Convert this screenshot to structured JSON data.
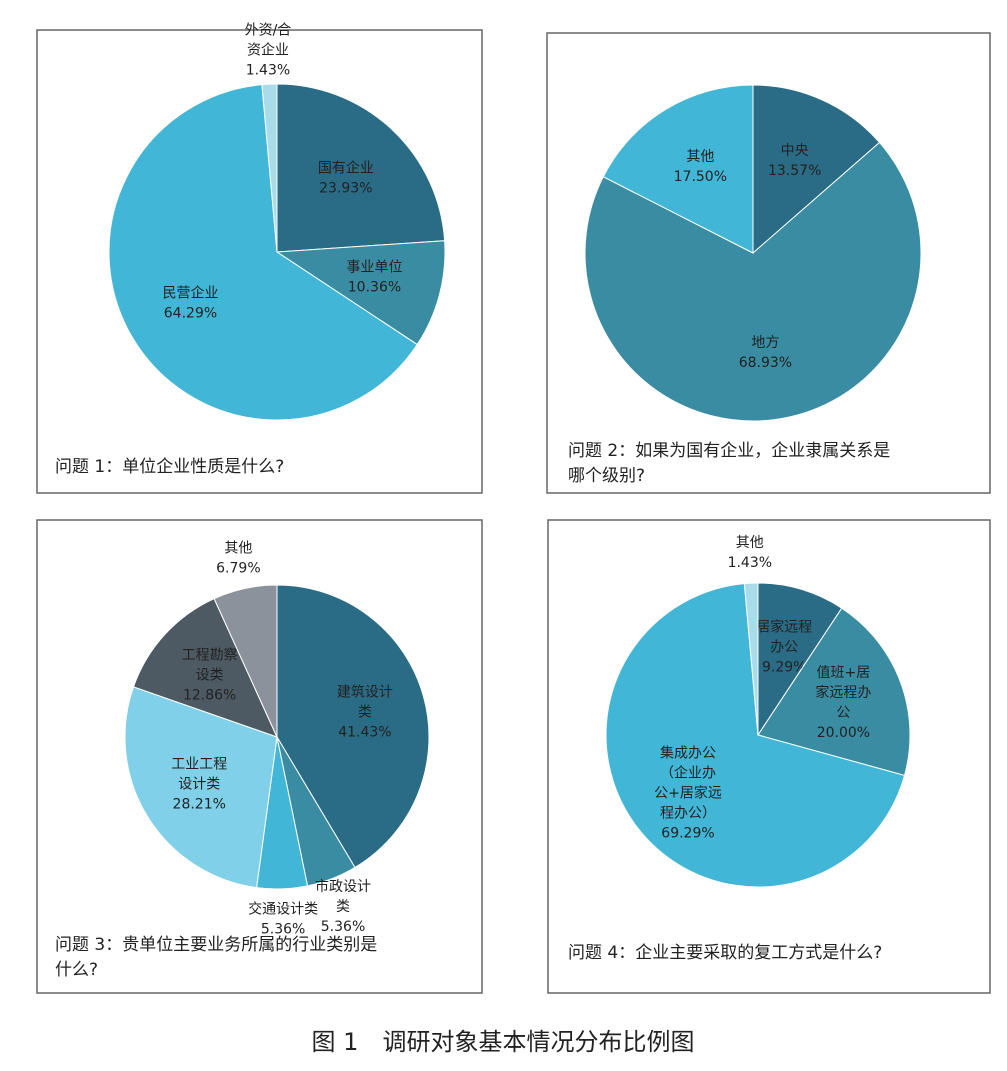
{
  "chart_data": [
    {
      "type": "pie",
      "title": "问题 1：单位企业性质是什么?",
      "categories": [
        "国有企业",
        "事业单位",
        "民营企业",
        "外资/合\n资企业"
      ],
      "values": [
        23.93,
        10.36,
        64.29,
        1.43
      ],
      "value_labels": [
        "23.93%",
        "10.36%",
        "64.29%",
        "1.43%"
      ],
      "colors": [
        "#2a6b85",
        "#3a8ca3",
        "#41b6d6",
        "#a8dcea"
      ]
    },
    {
      "type": "pie",
      "title": "问题 2：如果为国有企业，企业隶属关系是\n哪个级别?",
      "categories": [
        "中央",
        "地方",
        "其他"
      ],
      "values": [
        13.57,
        68.93,
        17.5
      ],
      "value_labels": [
        "13.57%",
        "68.93%",
        "17.50%"
      ],
      "colors": [
        "#2a6b85",
        "#3a8ca3",
        "#41b6d6"
      ]
    },
    {
      "type": "pie",
      "title": "问题 3：贵单位主要业务所属的行业类别是\n什么?",
      "categories": [
        "建筑设计\n类",
        "市政设计\n类",
        "交通设计类",
        "工业工程\n设计类",
        "工程勘察\n设类",
        "其他"
      ],
      "values": [
        41.43,
        5.36,
        5.36,
        28.21,
        12.86,
        6.79
      ],
      "value_labels": [
        "41.43%",
        "5.36%",
        "5.36%",
        "28.21%",
        "12.86%",
        "6.79%"
      ],
      "colors": [
        "#2a6b85",
        "#3a8ca3",
        "#41b6d6",
        "#7fd0e8",
        "#4d5a63",
        "#8c929c"
      ]
    },
    {
      "type": "pie",
      "title": "问题 4：企业主要采取的复工方式是什么?",
      "categories": [
        "居家远程\n办公",
        "值班+居\n家远程办\n公",
        "集成办公\n（企业办\n公+居家远\n程办公）",
        "其他"
      ],
      "values": [
        9.29,
        20.0,
        69.29,
        1.43
      ],
      "value_labels": [
        "9.29%",
        "20.00%",
        "69.29%",
        "1.43%"
      ],
      "colors": [
        "#2a6b85",
        "#3a8ca3",
        "#41b6d6",
        "#a8dcea"
      ]
    }
  ],
  "caption": "图 1　调研对象基本情况分布比例图"
}
